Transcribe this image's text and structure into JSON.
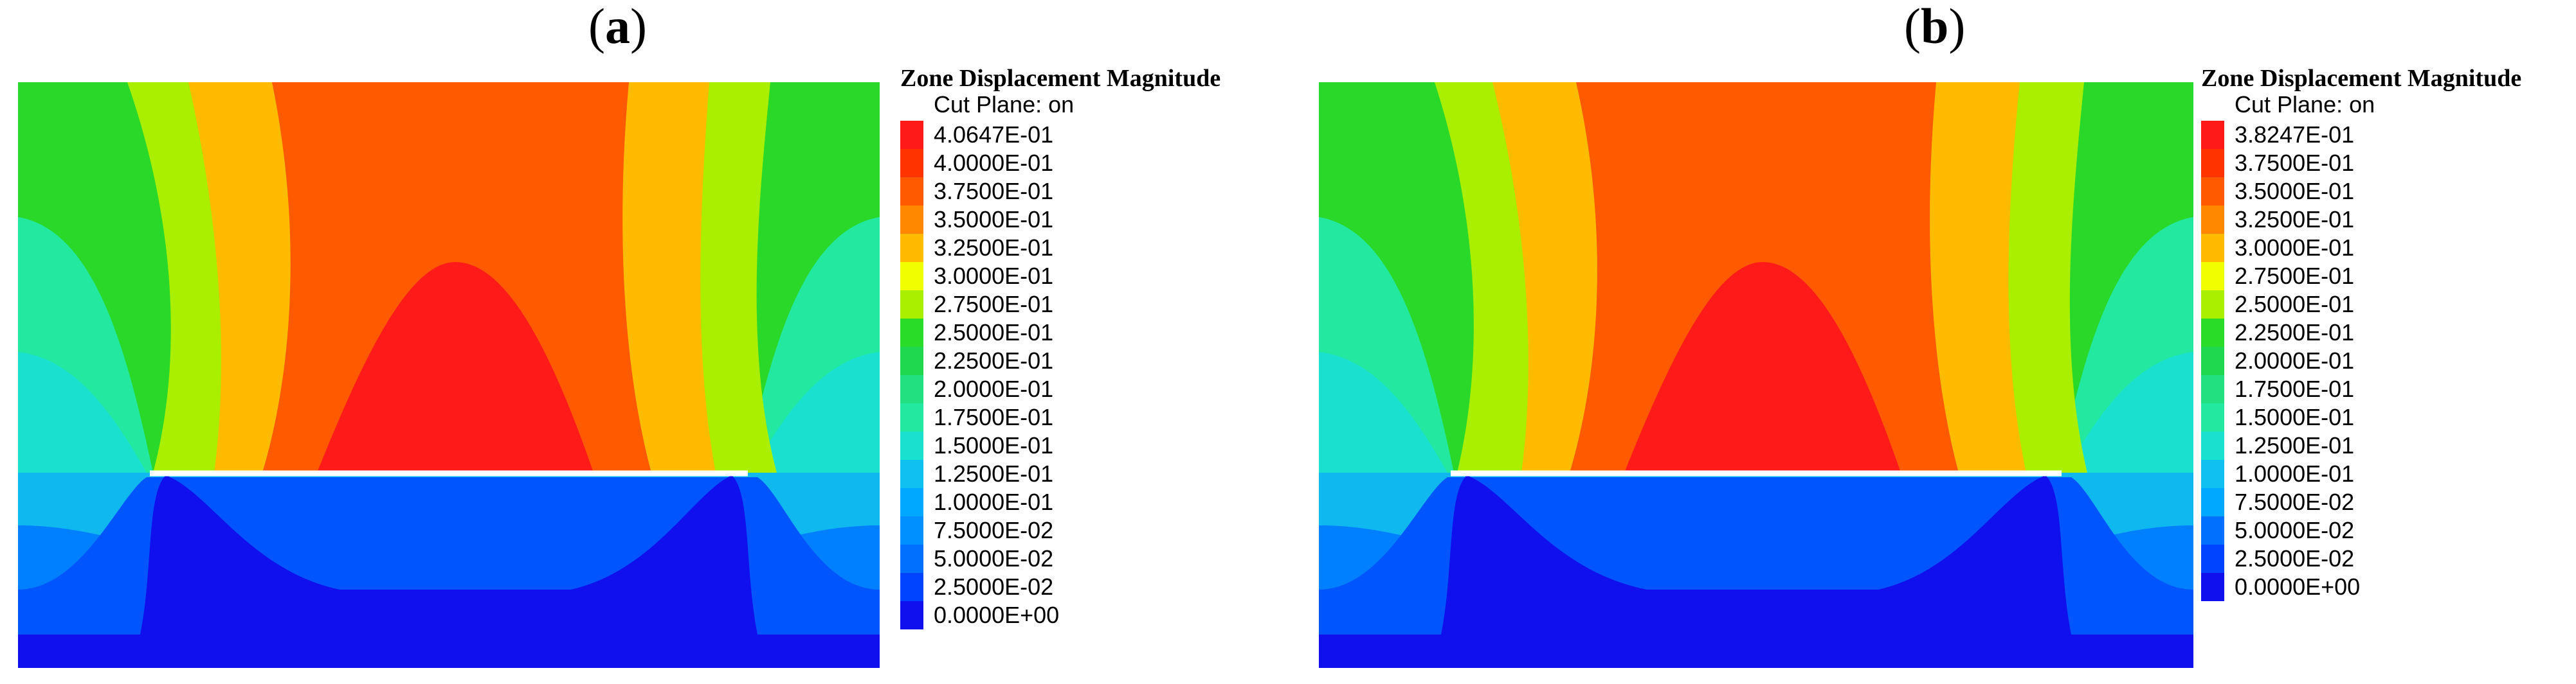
{
  "colors": {
    "red": "#ff1a1a",
    "orange_red": "#ff5a00",
    "orange": "#ff8800",
    "amber": "#ffbb00",
    "yellow": "#f0ff00",
    "yellow_green": "#aaee00",
    "green": "#28dc28",
    "cyan_green": "#22e8a0",
    "cyan": "#1ae0d0",
    "sky": "#10c0f0",
    "light_blue": "#0090ff",
    "mid_blue": "#0055ff",
    "blue": "#1030ff",
    "deep_blue": "#1010ee",
    "boundary_line": "#ffffff"
  },
  "panels": [
    {
      "label_open": "(",
      "label_letter": "a",
      "label_close": ")",
      "legend_title": "Zone Displacement Magnitude",
      "legend_subtitle": "Cut Plane: on",
      "legend": [
        {
          "label": "4.0647E-01",
          "color": "#ff1a1a"
        },
        {
          "label": "4.0000E-01",
          "color": "#ff3300"
        },
        {
          "label": "3.7500E-01",
          "color": "#ff5a00"
        },
        {
          "label": "3.5000E-01",
          "color": "#ff8800"
        },
        {
          "label": "3.2500E-01",
          "color": "#ffbb00"
        },
        {
          "label": "3.0000E-01",
          "color": "#f0ff00"
        },
        {
          "label": "2.7500E-01",
          "color": "#aaee00"
        },
        {
          "label": "2.5000E-01",
          "color": "#28dc28"
        },
        {
          "label": "2.2500E-01",
          "color": "#20d850"
        },
        {
          "label": "2.0000E-01",
          "color": "#22e080"
        },
        {
          "label": "1.7500E-01",
          "color": "#22e8a0"
        },
        {
          "label": "1.5000E-01",
          "color": "#1ae0d0"
        },
        {
          "label": "1.2500E-01",
          "color": "#10c0f0"
        },
        {
          "label": "1.0000E-01",
          "color": "#00a8ff"
        },
        {
          "label": "7.5000E-02",
          "color": "#0090ff"
        },
        {
          "label": "5.0000E-02",
          "color": "#0070ff"
        },
        {
          "label": "2.5000E-02",
          "color": "#0044ff"
        },
        {
          "label": "0.0000E+00",
          "color": "#1010ee"
        }
      ]
    },
    {
      "label_open": "(",
      "label_letter": "b",
      "label_close": ")",
      "legend_title": "Zone Displacement Magnitude",
      "legend_subtitle": "Cut Plane: on",
      "legend": [
        {
          "label": "3.8247E-01",
          "color": "#ff1a1a"
        },
        {
          "label": "3.7500E-01",
          "color": "#ff3300"
        },
        {
          "label": "3.5000E-01",
          "color": "#ff5a00"
        },
        {
          "label": "3.2500E-01",
          "color": "#ff8800"
        },
        {
          "label": "3.0000E-01",
          "color": "#ffbb00"
        },
        {
          "label": "2.7500E-01",
          "color": "#f0ff00"
        },
        {
          "label": "2.5000E-01",
          "color": "#aaee00"
        },
        {
          "label": "2.2500E-01",
          "color": "#28dc28"
        },
        {
          "label": "2.0000E-01",
          "color": "#20d850"
        },
        {
          "label": "1.7500E-01",
          "color": "#22e080"
        },
        {
          "label": "1.5000E-01",
          "color": "#22e8a0"
        },
        {
          "label": "1.2500E-01",
          "color": "#1ae0d0"
        },
        {
          "label": "1.0000E-01",
          "color": "#10c0f0"
        },
        {
          "label": "7.5000E-02",
          "color": "#00a8ff"
        },
        {
          "label": "5.0000E-02",
          "color": "#0070ff"
        },
        {
          "label": "2.5000E-02",
          "color": "#0044ff"
        },
        {
          "label": "0.0000E+00",
          "color": "#1010ee"
        }
      ]
    }
  ],
  "chart_data": [
    {
      "type": "heatmap",
      "title": "",
      "quantity": "Zone Displacement Magnitude",
      "cut_plane": "on",
      "value_range": [
        0.0,
        0.40647
      ],
      "contour_levels": [
        0.40647,
        0.4,
        0.375,
        0.35,
        0.325,
        0.3,
        0.275,
        0.25,
        0.225,
        0.2,
        0.175,
        0.15,
        0.125,
        0.1,
        0.075,
        0.05,
        0.025,
        0.0
      ],
      "legend_position": "right"
    },
    {
      "type": "heatmap",
      "title": "",
      "quantity": "Zone Displacement Magnitude",
      "cut_plane": "on",
      "value_range": [
        0.0,
        0.38247
      ],
      "contour_levels": [
        0.38247,
        0.375,
        0.35,
        0.325,
        0.3,
        0.275,
        0.25,
        0.225,
        0.2,
        0.175,
        0.15,
        0.125,
        0.1,
        0.075,
        0.05,
        0.025,
        0.0
      ],
      "legend_position": "right"
    }
  ]
}
